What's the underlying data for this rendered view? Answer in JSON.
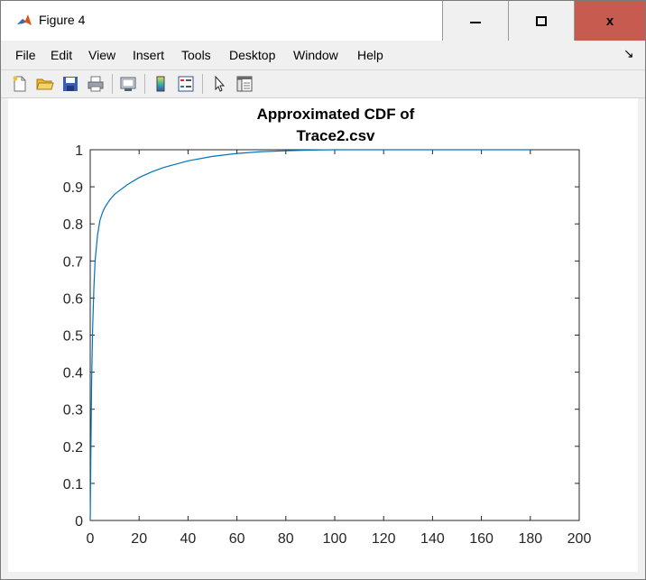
{
  "window": {
    "title": "Figure 4",
    "close_glyph": "x"
  },
  "menu": {
    "items": [
      "File",
      "Edit",
      "View",
      "Insert",
      "Tools",
      "Desktop",
      "Window",
      "Help"
    ],
    "overflow_glyph": "↘"
  },
  "toolbar": {
    "icons": [
      "new-figure-icon",
      "open-file-icon",
      "save-icon",
      "print-icon",
      "link-plot-icon",
      "insert-colorbar-icon",
      "insert-legend-icon",
      "pointer-icon",
      "property-editor-icon"
    ]
  },
  "chart_data": {
    "type": "line",
    "title_lines": [
      "Approximated CDF of",
      "Trace2.csv"
    ],
    "xlabel": "",
    "ylabel": "",
    "xlim": [
      0,
      200
    ],
    "ylim": [
      0,
      1
    ],
    "xticks": [
      "0",
      "20",
      "40",
      "60",
      "80",
      "100",
      "120",
      "140",
      "160",
      "180",
      "200"
    ],
    "yticks": [
      "0",
      "0.1",
      "0.2",
      "0.3",
      "0.4",
      "0.5",
      "0.6",
      "0.7",
      "0.8",
      "0.9",
      "1"
    ],
    "grid": false,
    "line_color": "#0072bd",
    "x": [
      0,
      0.3,
      0.6,
      1,
      1.5,
      2,
      3,
      4,
      5,
      6,
      8,
      10,
      12,
      15,
      20,
      25,
      30,
      40,
      50,
      60,
      70,
      80,
      90,
      100,
      120,
      150,
      180
    ],
    "y": [
      0,
      0.2,
      0.38,
      0.52,
      0.63,
      0.7,
      0.77,
      0.81,
      0.83,
      0.845,
      0.865,
      0.88,
      0.89,
      0.905,
      0.925,
      0.94,
      0.952,
      0.97,
      0.982,
      0.99,
      0.995,
      0.997,
      0.999,
      1,
      1,
      1,
      1
    ]
  }
}
